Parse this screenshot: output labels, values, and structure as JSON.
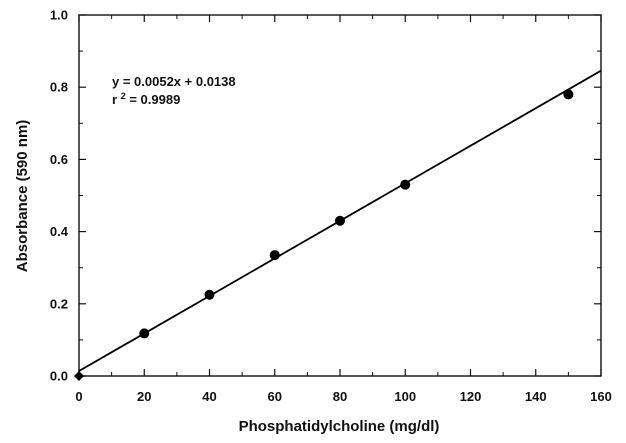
{
  "chart_data": {
    "type": "scatter",
    "title": "",
    "xlabel": "Phosphatidylcholine (mg/dl)",
    "ylabel": "Absorbance (590 nm)",
    "xlim": [
      0,
      160
    ],
    "ylim": [
      0,
      1.0
    ],
    "x_ticks": [
      0,
      20,
      40,
      60,
      80,
      100,
      120,
      140,
      160
    ],
    "x_tick_labels": [
      "0",
      "20",
      "40",
      "60",
      "80",
      "100",
      "120",
      "140",
      "160"
    ],
    "y_ticks": [
      0.0,
      0.2,
      0.4,
      0.6,
      0.8,
      1.0
    ],
    "y_tick_labels": [
      "0.0",
      "0.2",
      "0.4",
      "0.6",
      "0.8",
      "1.0"
    ],
    "x_minor_step": 10,
    "y_minor_step": 0.1,
    "grid": false,
    "series": [
      {
        "x": [
          0,
          20,
          40,
          60,
          80,
          100,
          150
        ],
        "y": [
          0.0,
          0.118,
          0.225,
          0.335,
          0.43,
          0.53,
          0.78
        ],
        "marker": "circle",
        "color": "#000000"
      }
    ],
    "fit_line": {
      "slope": 0.0052,
      "intercept": 0.0138,
      "x_range": [
        0,
        160
      ],
      "color": "#000000"
    },
    "annotations": {
      "equation": "y = 0.0052x + 0.0138",
      "r_prefix": "r",
      "r_superscript": "2",
      "r_value": " = 0.9989"
    }
  }
}
